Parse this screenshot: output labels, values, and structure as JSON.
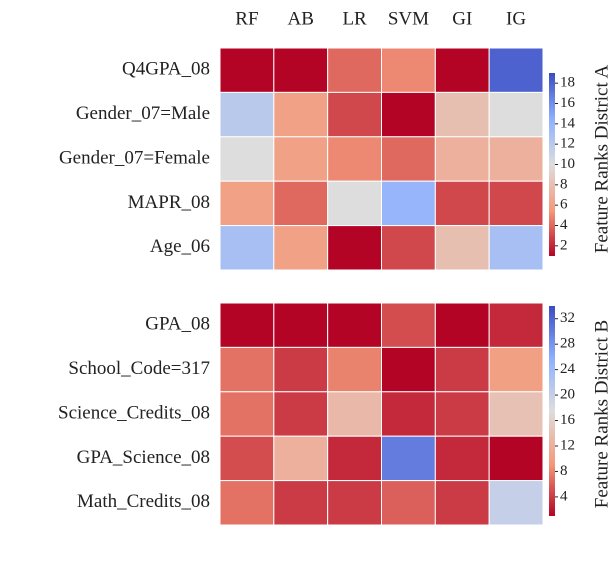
{
  "chart_data": [
    {
      "type": "heatmap",
      "x": [
        "RF",
        "AB",
        "LR",
        "SVM",
        "GI",
        "IG"
      ],
      "y": [
        "Q4GPA_08",
        "Gender_07=Male",
        "Gender_07=Female",
        "MAPR_08",
        "Age_06"
      ],
      "values": [
        [
          1,
          1,
          4,
          5,
          1,
          18
        ],
        [
          12,
          6,
          3,
          1,
          8,
          10
        ],
        [
          10,
          6,
          5,
          4,
          7,
          7
        ],
        [
          6,
          4,
          10,
          14,
          3,
          3
        ],
        [
          13,
          6,
          1,
          3,
          8,
          13
        ]
      ],
      "colorbar_label": "Feature Ranks District A",
      "clim": [
        1,
        19
      ],
      "cticks": [
        2,
        4,
        6,
        8,
        10,
        12,
        14,
        16,
        18
      ],
      "colorscale": [
        "#b40426",
        "#f49a7b",
        "#dddddd",
        "#8db0fe",
        "#3b4cc0"
      ]
    },
    {
      "type": "heatmap",
      "y": [
        "GPA_08",
        "School_Code=317",
        "Science_Credits_08",
        "GPA_Science_08",
        "Math_Credits_08"
      ],
      "values": [
        [
          1,
          1,
          1,
          5,
          1,
          3
        ],
        [
          7,
          4,
          8,
          1,
          4,
          10
        ],
        [
          7,
          4,
          13,
          3,
          4,
          14
        ],
        [
          5,
          12,
          3,
          30,
          3,
          1
        ],
        [
          7,
          4,
          4,
          6,
          4,
          20
        ]
      ],
      "colorbar_label": "Feature Ranks District B",
      "clim": [
        1,
        34
      ],
      "cticks": [
        4,
        8,
        12,
        16,
        20,
        24,
        28,
        32
      ],
      "colorscale": [
        "#b40426",
        "#f49a7b",
        "#dddddd",
        "#8db0fe",
        "#3b4cc0"
      ]
    }
  ]
}
